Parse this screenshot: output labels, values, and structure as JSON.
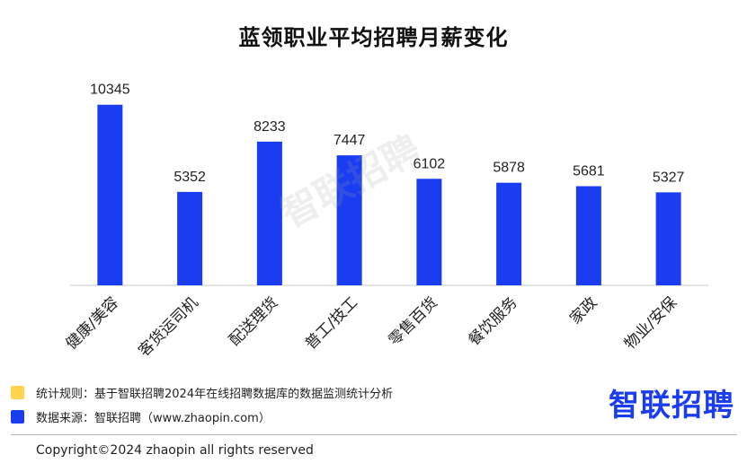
{
  "chart_data": {
    "type": "bar",
    "title": "蓝领职业平均招聘月薪变化",
    "categories": [
      "健康/美容",
      "客货运司机",
      "配送理货",
      "普工/技工",
      "零售百货",
      "餐饮服务",
      "家政",
      "物业/安保"
    ],
    "values": [
      10345,
      5352,
      8233,
      7447,
      6102,
      5878,
      5681,
      5327
    ],
    "xlabel": "",
    "ylabel": "",
    "ylim": [
      0,
      11000
    ],
    "grid": false,
    "bar_color": "#1a3df2"
  },
  "watermark": "智联招聘",
  "legend": {
    "rule": {
      "text": "统计规则：基于智联招聘2024年在线招聘数据库的数据监测统计分析",
      "color": "#ffd54f"
    },
    "source": {
      "text": "数据来源：智联招聘（www.zhaopin.com）",
      "color": "#1a3df2"
    }
  },
  "brand_logo": "智联招聘",
  "copyright": "Copyright©2024 zhaopin all rights reserved"
}
